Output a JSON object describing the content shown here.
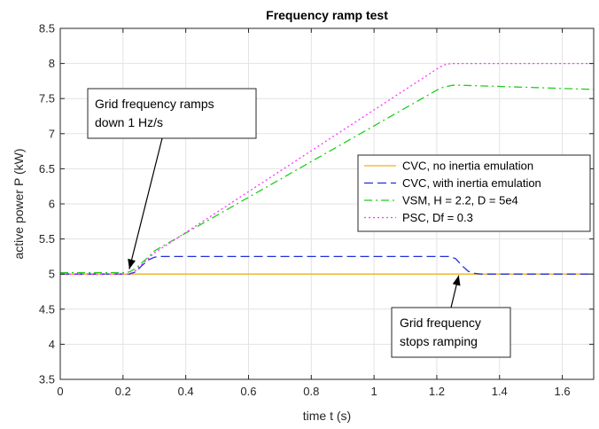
{
  "chart_data": {
    "type": "line",
    "title": "Frequency ramp test",
    "xlabel": "time t (s)",
    "ylabel": "active power P (kW)",
    "xlim": [
      0,
      1.7
    ],
    "ylim": [
      3.5,
      8.5
    ],
    "xticks": [
      0,
      0.2,
      0.4,
      0.6,
      0.8,
      1,
      1.2,
      1.4,
      1.6
    ],
    "xtick_labels": [
      "0",
      "0.2",
      "0.4",
      "0.6",
      "0.8",
      "1",
      "1.2",
      "1.4",
      "1.6"
    ],
    "yticks": [
      3.5,
      4,
      4.5,
      5,
      5.5,
      6,
      6.5,
      7,
      7.5,
      8,
      8.5
    ],
    "ytick_labels": [
      "3.5",
      "4",
      "4.5",
      "5",
      "5.5",
      "6",
      "6.5",
      "7",
      "7.5",
      "8",
      "8.5"
    ],
    "grid": true,
    "legend_position": "right",
    "series": [
      {
        "name": "CVC, no inertia emulation",
        "color": "#EDB120",
        "dash": "solid",
        "x": [
          0,
          1.7
        ],
        "y": [
          5.0,
          5.0
        ]
      },
      {
        "name": "CVC, with inertia emulation",
        "color": "#1f2fd6",
        "dash": "dashed",
        "x": [
          0,
          0.22,
          0.24,
          0.26,
          0.28,
          0.3,
          0.32,
          1.24,
          1.26,
          1.28,
          1.3,
          1.32,
          1.34,
          1.7
        ],
        "y": [
          5.0,
          5.0,
          5.03,
          5.12,
          5.2,
          5.24,
          5.25,
          5.25,
          5.22,
          5.12,
          5.04,
          5.01,
          5.0,
          5.0
        ]
      },
      {
        "name": "VSM, H = 2.2, D = 5e4",
        "color": "#22cc22",
        "dash": "dashdot",
        "x": [
          0,
          0.2,
          0.22,
          0.24,
          0.26,
          0.28,
          0.3,
          1.2,
          1.22,
          1.25,
          1.28,
          1.7
        ],
        "y": [
          5.02,
          5.02,
          5.03,
          5.08,
          5.16,
          5.24,
          5.33,
          7.62,
          7.66,
          7.69,
          7.69,
          7.63
        ]
      },
      {
        "name": "PSC, Df = 0.3",
        "color": "#ff33ff",
        "dash": "dotted",
        "x": [
          0,
          0.22,
          0.24,
          0.26,
          0.28,
          0.3,
          1.21,
          1.23,
          1.25,
          1.7
        ],
        "y": [
          5.0,
          5.0,
          5.05,
          5.14,
          5.22,
          5.3,
          7.95,
          7.99,
          8.0,
          8.0
        ]
      }
    ],
    "annotations": [
      {
        "lines": [
          "Grid frequency ramps",
          "down 1 Hz/s"
        ],
        "arrow_to": [
          0.22,
          5.07
        ]
      },
      {
        "lines": [
          "Grid frequency",
          "stops ramping"
        ],
        "arrow_to": [
          1.27,
          4.98
        ]
      }
    ]
  }
}
